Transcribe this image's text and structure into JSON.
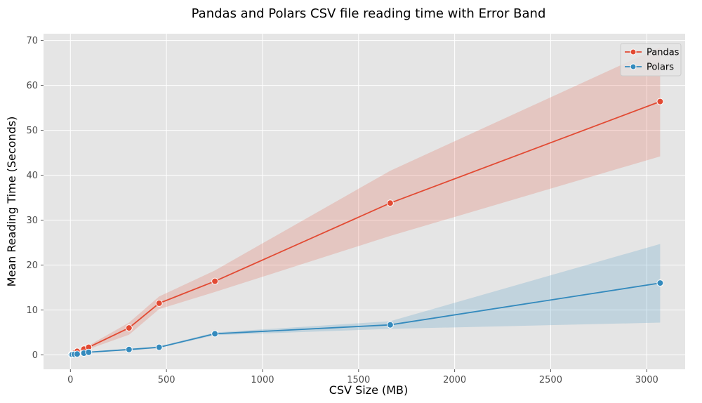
{
  "chart_data": {
    "type": "line",
    "title": "Pandas and Polars CSV file reading time with Error Band",
    "xlabel": "CSV Size (MB)",
    "ylabel": "Mean Reading Time (Seconds)",
    "xlim": [
      -140,
      3200
    ],
    "ylim": [
      -3.2,
      71.5
    ],
    "xticks": [
      0,
      500,
      1000,
      1500,
      2000,
      2500,
      3000
    ],
    "yticks": [
      0,
      10,
      20,
      30,
      40,
      50,
      60,
      70
    ],
    "grid": true,
    "legend_position": "top-right",
    "series": [
      {
        "name": "Pandas",
        "color": "#e24a33",
        "x": [
          5,
          10,
          20,
          35,
          70,
          95,
          305,
          462,
          752,
          1665,
          3070
        ],
        "y": [
          0.1,
          0.2,
          0.4,
          0.8,
          1.3,
          1.7,
          6.0,
          11.5,
          16.4,
          33.8,
          56.4
        ],
        "lower": [
          0.05,
          0.15,
          0.3,
          0.6,
          1.0,
          1.3,
          4.5,
          10.2,
          14.0,
          26.5,
          44.2
        ],
        "upper": [
          0.15,
          0.25,
          0.5,
          1.0,
          1.6,
          2.1,
          7.2,
          13.0,
          18.8,
          41.0,
          68.5
        ]
      },
      {
        "name": "Polars",
        "color": "#348abd",
        "x": [
          5,
          10,
          20,
          35,
          70,
          95,
          305,
          462,
          752,
          1665,
          3070
        ],
        "y": [
          0.05,
          0.1,
          0.15,
          0.2,
          0.4,
          0.6,
          1.2,
          1.7,
          4.7,
          6.7,
          16.0
        ],
        "lower": [
          0.03,
          0.06,
          0.1,
          0.15,
          0.3,
          0.5,
          1.0,
          1.5,
          4.4,
          5.8,
          7.2
        ],
        "upper": [
          0.07,
          0.14,
          0.2,
          0.25,
          0.5,
          0.7,
          1.4,
          1.9,
          5.0,
          7.5,
          24.7
        ]
      }
    ]
  }
}
